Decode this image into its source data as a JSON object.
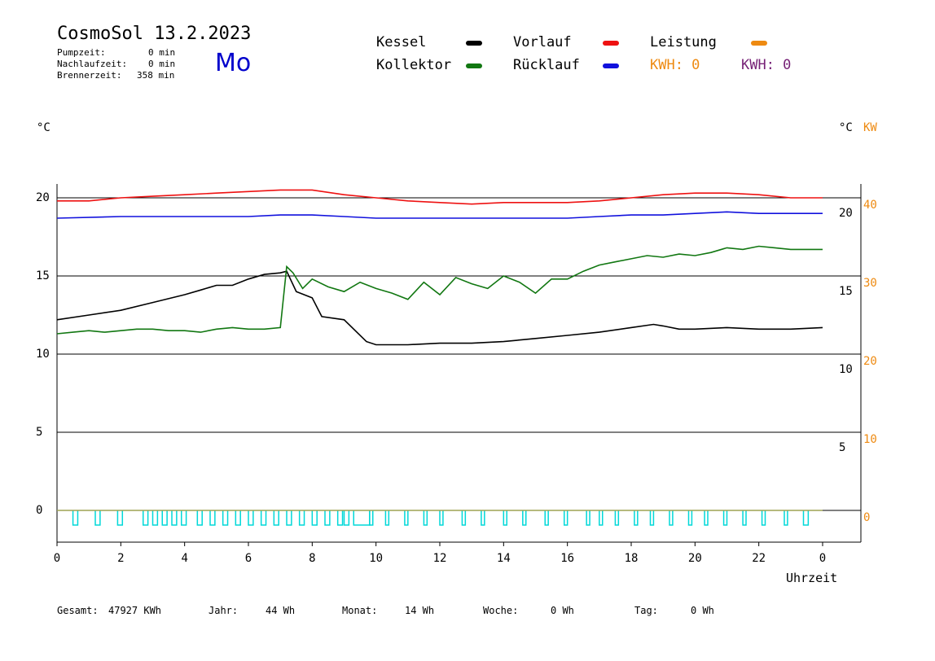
{
  "header": {
    "title": "CosmoSol 13.2.2023",
    "day": "Mo",
    "stats": [
      {
        "label": "Pumpzeit:",
        "value": "0 min"
      },
      {
        "label": "Nachlaufzeit:",
        "value": "0 min"
      },
      {
        "label": "Brennerzeit:",
        "value": "358 min"
      }
    ]
  },
  "legend": {
    "kessel": {
      "label": "Kessel",
      "color": "#000000"
    },
    "vorlauf": {
      "label": "Vorlauf",
      "color": "#ee1111"
    },
    "leistung": {
      "label": "Leistung",
      "color": "#ee8a11"
    },
    "kollektor": {
      "label": "Kollektor",
      "color": "#117711"
    },
    "ruecklauf": {
      "label": "Rücklauf",
      "color": "#1111dd"
    },
    "kwh1": {
      "label": "KWH: 0",
      "color": "#ee8a11"
    },
    "kwh2": {
      "label": "KWH: 0",
      "color": "#772277"
    }
  },
  "axis_units": {
    "left": "°C",
    "right_c": "°C",
    "right_kw": "KW"
  },
  "footer": {
    "gesamt_label": "Gesamt:",
    "gesamt_value": "47927 KWh",
    "jahr_label": "Jahr:",
    "jahr_value": "44 Wh",
    "monat_label": "Monat:",
    "monat_value": "14 Wh",
    "woche_label": "Woche:",
    "woche_value": "0 Wh",
    "tag_label": "Tag:",
    "tag_value": "0 Wh"
  },
  "chart_data": {
    "type": "line",
    "xlabel": "Uhrzeit",
    "x_ticks": [
      "0",
      "2",
      "4",
      "6",
      "8",
      "10",
      "12",
      "14",
      "16",
      "18",
      "20",
      "22",
      "0"
    ],
    "xlim": [
      0,
      24
    ],
    "y_left": {
      "ticks": [
        "20",
        "15",
        "10",
        "5",
        "0"
      ],
      "values": [
        20,
        15,
        10,
        5,
        0
      ],
      "ylim": [
        -1,
        22.5
      ]
    },
    "y_right_c": {
      "ticks": [
        "20",
        "15",
        "10",
        "5"
      ],
      "values": [
        20,
        15,
        10,
        5
      ]
    },
    "y_right_kw": {
      "ticks": [
        "40",
        "30",
        "20",
        "10",
        "0"
      ],
      "values": [
        40,
        30,
        20,
        10,
        0
      ]
    },
    "grid": "horizontal",
    "series": [
      {
        "name": "Vorlauf",
        "color": "#ee1111",
        "x": [
          0,
          1,
          2,
          3,
          4,
          5,
          6,
          7,
          8,
          9,
          10,
          11,
          12,
          13,
          14,
          15,
          16,
          17,
          18,
          19,
          20,
          21,
          22,
          23,
          24
        ],
        "y": [
          19.8,
          19.8,
          20.0,
          20.1,
          20.2,
          20.3,
          20.4,
          20.5,
          20.5,
          20.2,
          20.0,
          19.8,
          19.7,
          19.6,
          19.7,
          19.7,
          19.7,
          19.8,
          20.0,
          20.2,
          20.3,
          20.3,
          20.2,
          20.0,
          20.0
        ]
      },
      {
        "name": "Rücklauf",
        "color": "#1111dd",
        "x": [
          0,
          2,
          4,
          6,
          7,
          8,
          9,
          10,
          12,
          14,
          16,
          17,
          18,
          19,
          20,
          21,
          22,
          23,
          24
        ],
        "y": [
          18.7,
          18.8,
          18.8,
          18.8,
          18.9,
          18.9,
          18.8,
          18.7,
          18.7,
          18.7,
          18.7,
          18.8,
          18.9,
          18.9,
          19.0,
          19.1,
          19.0,
          19.0,
          19.0
        ]
      },
      {
        "name": "Kessel",
        "color": "#000000",
        "x": [
          0,
          1,
          2,
          3,
          4,
          4.5,
          5,
          5.5,
          6,
          6.5,
          7,
          7.2,
          7.5,
          8,
          8.3,
          9,
          9.3,
          9.7,
          10,
          11,
          12,
          13,
          14,
          15,
          16,
          17,
          18,
          18.7,
          19,
          19.5,
          20,
          21,
          22,
          23,
          24
        ],
        "y": [
          12.2,
          12.5,
          12.8,
          13.3,
          13.8,
          14.1,
          14.4,
          14.4,
          14.8,
          15.1,
          15.2,
          15.3,
          14.0,
          13.6,
          12.4,
          12.2,
          11.6,
          10.8,
          10.6,
          10.6,
          10.7,
          10.7,
          10.8,
          11.0,
          11.2,
          11.4,
          11.7,
          11.9,
          11.8,
          11.6,
          11.6,
          11.7,
          11.6,
          11.6,
          11.7
        ]
      },
      {
        "name": "Kollektor",
        "color": "#117711",
        "x": [
          0,
          0.5,
          1,
          1.5,
          2,
          2.5,
          3,
          3.5,
          4,
          4.5,
          5,
          5.5,
          6,
          6.5,
          7,
          7.2,
          7.4,
          7.7,
          8,
          8.5,
          9,
          9.5,
          10,
          10.5,
          11,
          11.5,
          12,
          12.5,
          13,
          13.5,
          14,
          14.5,
          15,
          15.5,
          16,
          16.5,
          17,
          17.5,
          18,
          18.5,
          19,
          19.5,
          20,
          20.5,
          21,
          21.5,
          22,
          22.5,
          23,
          23.5,
          24
        ],
        "y": [
          11.3,
          11.4,
          11.5,
          11.4,
          11.5,
          11.6,
          11.6,
          11.5,
          11.5,
          11.4,
          11.6,
          11.7,
          11.6,
          11.6,
          11.7,
          15.6,
          15.2,
          14.2,
          14.8,
          14.3,
          14.0,
          14.6,
          14.2,
          13.9,
          13.5,
          14.6,
          13.8,
          14.9,
          14.5,
          14.2,
          15.0,
          14.6,
          13.9,
          14.8,
          14.8,
          15.3,
          15.7,
          15.9,
          16.1,
          16.3,
          16.2,
          16.4,
          16.3,
          16.5,
          16.8,
          16.7,
          16.9,
          16.8,
          16.7,
          16.7,
          16.7
        ]
      },
      {
        "name": "Leistung",
        "color": "#ee8a11",
        "x": [
          0,
          24
        ],
        "y": [
          0,
          0
        ]
      }
    ],
    "burner_pulses": {
      "color": "#00d8d8",
      "x_starts": [
        0.5,
        1.2,
        1.9,
        2.7,
        3.0,
        3.3,
        3.6,
        3.9,
        4.4,
        4.8,
        5.2,
        5.6,
        6.0,
        6.4,
        6.8,
        7.2,
        7.6,
        8.0,
        8.4,
        8.8,
        9.0,
        9.3,
        9.8,
        10.3,
        10.9,
        11.5,
        12.0,
        12.7,
        13.3,
        14.0,
        14.6,
        15.3,
        15.9,
        16.6,
        17.0,
        17.5,
        18.1,
        18.6,
        19.2,
        19.8,
        20.3,
        20.9,
        21.5,
        22.1,
        22.8,
        23.4
      ],
      "widths": [
        0.15,
        0.15,
        0.15,
        0.15,
        0.15,
        0.15,
        0.15,
        0.15,
        0.15,
        0.15,
        0.15,
        0.15,
        0.15,
        0.15,
        0.15,
        0.15,
        0.15,
        0.15,
        0.15,
        0.15,
        0.15,
        0.5,
        0.1,
        0.1,
        0.1,
        0.1,
        0.1,
        0.1,
        0.1,
        0.1,
        0.1,
        0.1,
        0.1,
        0.1,
        0.1,
        0.1,
        0.1,
        0.1,
        0.1,
        0.1,
        0.1,
        0.1,
        0.1,
        0.1,
        0.1,
        0.15
      ]
    }
  }
}
